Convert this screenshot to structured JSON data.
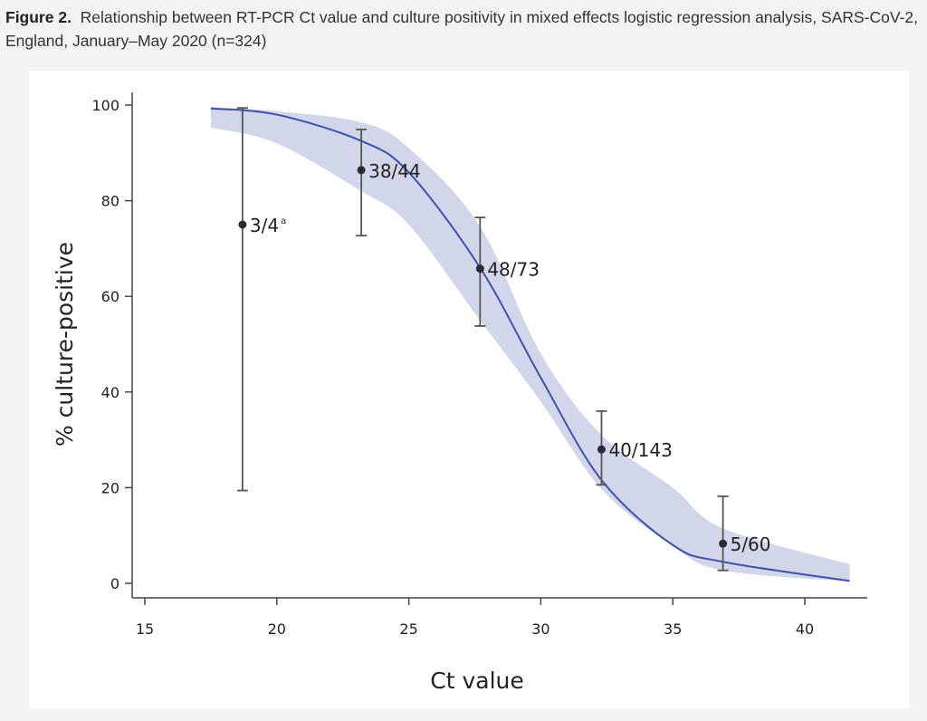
{
  "caption": {
    "label": "Figure 2.",
    "text": "Relationship between RT-PCR Ct value and culture positivity in mixed effects logistic regression analysis, SARS-CoV-2, England, January–May 2020 (n=324)"
  },
  "chart_data": {
    "type": "line",
    "xlabel": "Ct value",
    "ylabel": "% culture-positive",
    "xlim": [
      15,
      42
    ],
    "ylim": [
      0,
      100
    ],
    "xticks": [
      15,
      20,
      25,
      30,
      35,
      40
    ],
    "yticks": [
      0,
      20,
      40,
      60,
      80,
      100
    ],
    "grid": false,
    "colors": {
      "curve": "#3f51a8",
      "band": "#d1d6ea",
      "points": "#2a2a35",
      "errorbars": "#555555"
    },
    "fitted_curve": {
      "x": [
        17.5,
        20,
        23.2,
        25,
        27.7,
        30,
        32.3,
        35,
        36.9,
        41.7
      ],
      "y": [
        99.3,
        98.0,
        92.5,
        85.9,
        66.0,
        43.0,
        21.6,
        8.0,
        4.5,
        0.5
      ]
    },
    "confidence_band": {
      "x": [
        17.5,
        20,
        23.2,
        25,
        27.7,
        30,
        32.3,
        35,
        36.9,
        41.7
      ],
      "upper": [
        99.6,
        98.7,
        96.4,
        91.0,
        74.6,
        48.0,
        31.0,
        20.0,
        11.5,
        4.0
      ],
      "lower": [
        95.3,
        92.0,
        82.0,
        75.0,
        55.0,
        38.0,
        19.7,
        7.8,
        2.7,
        0.4
      ]
    },
    "points": [
      {
        "x": 18.7,
        "y": 75.0,
        "ci": [
          19.4,
          99.4
        ],
        "label": "3/4",
        "sup": "a"
      },
      {
        "x": 23.2,
        "y": 86.4,
        "ci": [
          72.7,
          94.9
        ],
        "label": "38/44",
        "sup": ""
      },
      {
        "x": 27.7,
        "y": 65.8,
        "ci": [
          53.8,
          76.5
        ],
        "label": "48/73",
        "sup": ""
      },
      {
        "x": 32.3,
        "y": 28.0,
        "ci": [
          20.6,
          36.0
        ],
        "label": "40/143",
        "sup": ""
      },
      {
        "x": 36.9,
        "y": 8.3,
        "ci": [
          2.7,
          18.2
        ],
        "label": "5/60",
        "sup": ""
      }
    ]
  }
}
